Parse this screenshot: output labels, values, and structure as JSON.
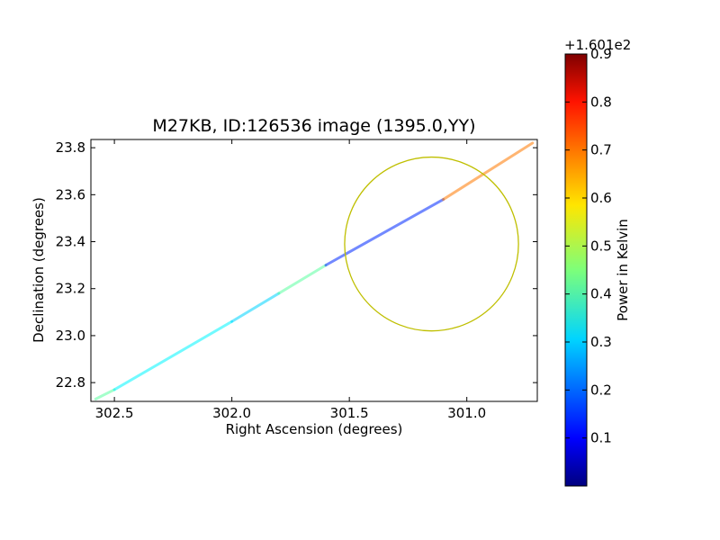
{
  "chart_data": {
    "type": "scatter",
    "title": "M27KB, ID:126536 image (1395.0,YY)",
    "xlabel": "Right Ascension (degrees)",
    "ylabel": "Declination (degrees)",
    "xlim": [
      302.6,
      300.7
    ],
    "ylim": [
      22.72,
      23.835
    ],
    "x_ticks": [
      "302.5",
      "302.0",
      "301.5",
      "301.0"
    ],
    "y_ticks": [
      "22.8",
      "23.0",
      "23.2",
      "23.4",
      "23.6",
      "23.8"
    ],
    "x_tick_values": [
      302.5,
      302.0,
      301.5,
      301.0
    ],
    "y_tick_values": [
      22.8,
      23.0,
      23.2,
      23.4,
      23.6,
      23.8
    ],
    "grid": false,
    "x_axis_reversed": true,
    "circle": {
      "center_ra": 301.15,
      "center_dec": 23.39,
      "radius_deg": 0.37,
      "color": "#bfbf00"
    },
    "track_segments": [
      {
        "ra_start": 302.58,
        "dec_start": 22.73,
        "ra_end": 302.5,
        "dec_end": 22.77,
        "power": 0.42
      },
      {
        "ra_start": 302.5,
        "dec_start": 22.77,
        "ra_end": 302.0,
        "dec_end": 23.06,
        "power": 0.33
      },
      {
        "ra_start": 302.0,
        "dec_start": 23.06,
        "ra_end": 301.8,
        "dec_end": 23.18,
        "power": 0.3
      },
      {
        "ra_start": 301.8,
        "dec_start": 23.18,
        "ra_end": 301.6,
        "dec_end": 23.3,
        "power": 0.42
      },
      {
        "ra_start": 301.6,
        "dec_start": 23.3,
        "ra_end": 301.1,
        "dec_end": 23.58,
        "power": 0.15
      },
      {
        "ra_start": 301.1,
        "dec_start": 23.58,
        "ra_end": 300.72,
        "dec_end": 23.82,
        "power": 0.68
      }
    ],
    "colorbar": {
      "label": "Power in Kelvin",
      "offset_label": "+1.601e2",
      "range": [
        0,
        0.9
      ],
      "ticks": [
        "0.1",
        "0.2",
        "0.3",
        "0.4",
        "0.5",
        "0.6",
        "0.7",
        "0.8",
        "0.9"
      ],
      "tick_values": [
        0.1,
        0.2,
        0.3,
        0.4,
        0.5,
        0.6,
        0.7,
        0.8,
        0.9
      ],
      "colormap": "jet"
    }
  }
}
